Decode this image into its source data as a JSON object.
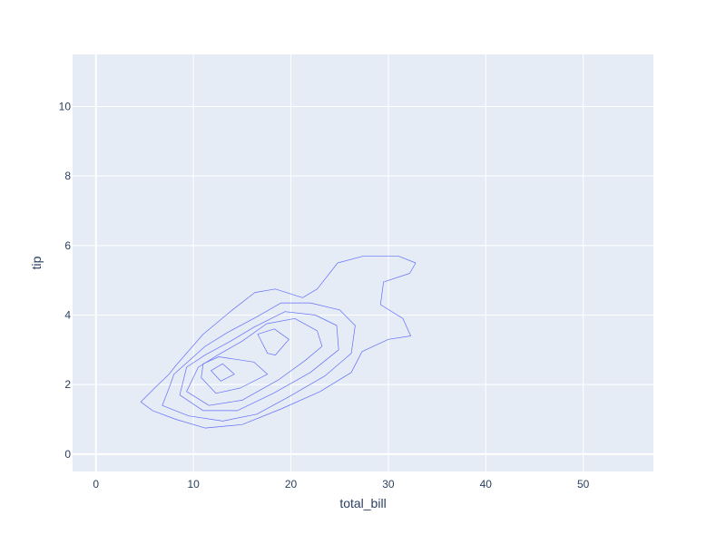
{
  "chart_data": {
    "type": "contour",
    "xlabel": "total_bill",
    "ylabel": "tip",
    "xlim": [
      -2.4,
      57.2
    ],
    "ylim": [
      -0.5,
      11.5
    ],
    "x_ticks": [
      0,
      10,
      20,
      30,
      40,
      50
    ],
    "y_ticks": [
      0,
      2,
      4,
      6,
      8,
      10
    ],
    "grid": true,
    "colors": {
      "plot_bg": "#e5ecf6",
      "grid": "#ffffff",
      "contour": "#636efa",
      "text": "#2a3f5f"
    },
    "contours": [
      {
        "level": 1,
        "points": [
          [
            4.6,
            1.5
          ],
          [
            5.8,
            1.25
          ],
          [
            8.2,
            1.0
          ],
          [
            11.2,
            0.75
          ],
          [
            15,
            0.85
          ],
          [
            19,
            1.3
          ],
          [
            23,
            1.8
          ],
          [
            26.2,
            2.35
          ],
          [
            27.3,
            2.95
          ],
          [
            30,
            3.3
          ],
          [
            32.3,
            3.4
          ],
          [
            31.5,
            3.9
          ],
          [
            29.2,
            4.3
          ],
          [
            29.5,
            4.95
          ],
          [
            32.2,
            5.2
          ],
          [
            32.8,
            5.5
          ],
          [
            31,
            5.7
          ],
          [
            27.5,
            5.7
          ],
          [
            24.8,
            5.5
          ],
          [
            22.7,
            4.75
          ],
          [
            21.2,
            4.5
          ],
          [
            18.4,
            4.75
          ],
          [
            16.3,
            4.65
          ],
          [
            14,
            4.15
          ],
          [
            11,
            3.45
          ],
          [
            8.2,
            2.55
          ],
          [
            7.5,
            2.3
          ],
          [
            6.2,
            1.95
          ],
          [
            4.6,
            1.5
          ]
        ]
      },
      {
        "level": 2,
        "points": [
          [
            6.8,
            1.4
          ],
          [
            9.5,
            1.1
          ],
          [
            13,
            0.95
          ],
          [
            16.5,
            1.15
          ],
          [
            19.8,
            1.65
          ],
          [
            23.5,
            2.25
          ],
          [
            26.2,
            2.9
          ],
          [
            26.6,
            3.7
          ],
          [
            25,
            4.15
          ],
          [
            22,
            4.35
          ],
          [
            19,
            4.35
          ],
          [
            16.5,
            3.95
          ],
          [
            13.5,
            3.5
          ],
          [
            11.2,
            3.1
          ],
          [
            8,
            2.3
          ],
          [
            7.5,
            1.9
          ],
          [
            6.8,
            1.4
          ]
        ]
      },
      {
        "level": 3,
        "points": [
          [
            8.6,
            1.7
          ],
          [
            11,
            1.25
          ],
          [
            14.5,
            1.25
          ],
          [
            18.2,
            1.75
          ],
          [
            22,
            2.35
          ],
          [
            24.9,
            3.0
          ],
          [
            24.7,
            3.7
          ],
          [
            22.5,
            4.0
          ],
          [
            19.4,
            4.1
          ],
          [
            16.2,
            3.65
          ],
          [
            13.8,
            3.25
          ],
          [
            11.2,
            2.85
          ],
          [
            9.3,
            2.5
          ],
          [
            8.6,
            1.7
          ]
        ]
      },
      {
        "level": 4,
        "points": [
          [
            9.3,
            1.8
          ],
          [
            11.6,
            1.4
          ],
          [
            15,
            1.55
          ],
          [
            18.8,
            2.15
          ],
          [
            21.5,
            2.7
          ],
          [
            23.2,
            3.1
          ],
          [
            22.7,
            3.55
          ],
          [
            20.4,
            3.9
          ],
          [
            17.5,
            3.75
          ],
          [
            15,
            3.25
          ],
          [
            12.5,
            2.85
          ],
          [
            10.5,
            2.5
          ],
          [
            9.3,
            1.8
          ]
        ]
      },
      {
        "level": 5,
        "points": [
          [
            10.8,
            2.2
          ],
          [
            12.3,
            1.75
          ],
          [
            14.8,
            1.9
          ],
          [
            17.6,
            2.3
          ],
          [
            16.2,
            2.65
          ],
          [
            12.6,
            2.8
          ],
          [
            11,
            2.6
          ],
          [
            10.8,
            2.2
          ]
        ]
      },
      {
        "level": 6,
        "points": [
          [
            11.8,
            2.4
          ],
          [
            12.8,
            2.1
          ],
          [
            14.2,
            2.3
          ],
          [
            13,
            2.6
          ],
          [
            11.8,
            2.4
          ]
        ]
      },
      {
        "level": 7,
        "points": [
          [
            16.6,
            3.45
          ],
          [
            18.3,
            3.6
          ],
          [
            19.8,
            3.3
          ],
          [
            18.4,
            2.85
          ],
          [
            17.6,
            2.9
          ],
          [
            16.6,
            3.45
          ]
        ]
      }
    ]
  }
}
